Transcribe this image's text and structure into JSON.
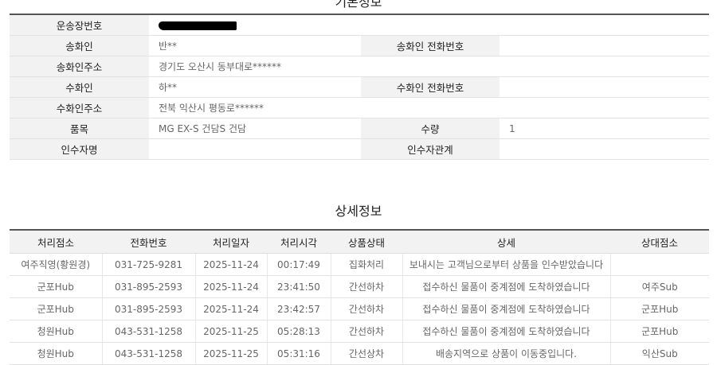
{
  "basic": {
    "title": "기본정보",
    "tracking_label": "운송장번호",
    "sender_label": "송화인",
    "sender": "반**",
    "sender_phone_label": "송화인 전화번호",
    "sender_phone": "",
    "sender_addr_label": "송화인주소",
    "sender_addr": "경기도 오산시 동부대로******",
    "receiver_label": "수화인",
    "receiver": "하**",
    "receiver_phone_label": "수화인 전화번호",
    "receiver_phone": "",
    "receiver_addr_label": "수화인주소",
    "receiver_addr": "전북 익산시 평동로******",
    "item_label": "품목",
    "item": "MG EX-S 건담S 건담",
    "qty_label": "수량",
    "qty": "1",
    "recipient_label": "인수자명",
    "recipient": "",
    "relation_label": "인수자관계",
    "relation": ""
  },
  "detail": {
    "title": "상세정보",
    "headers": [
      "처리점소",
      "전화번호",
      "처리일자",
      "처리시각",
      "상품상태",
      "상세",
      "상대점소"
    ],
    "rows": [
      [
        "여주직영(황원경)",
        "031-725-9281",
        "2025-11-24",
        "00:17:49",
        "집화처리",
        "보내시는 고객님으로부터 상품을 인수받았습니다",
        ""
      ],
      [
        "군포Hub",
        "031-895-2593",
        "2025-11-24",
        "23:41:50",
        "간선하차",
        "접수하신 물품이 중계점에 도착하였습니다",
        "여주Sub"
      ],
      [
        "군포Hub",
        "031-895-2593",
        "2025-11-24",
        "23:42:57",
        "간선하차",
        "접수하신 물품이 중계점에 도착하였습니다",
        "군포Hub"
      ],
      [
        "청원Hub",
        "043-531-1258",
        "2025-11-25",
        "05:28:13",
        "간선하차",
        "접수하신 물품이 중계점에 도착하였습니다",
        "군포Hub"
      ],
      [
        "청원Hub",
        "043-531-1258",
        "2025-11-25",
        "05:31:16",
        "간선상차",
        "배송지역으로 상품이 이동중입니다.",
        "익산Sub"
      ]
    ]
  }
}
